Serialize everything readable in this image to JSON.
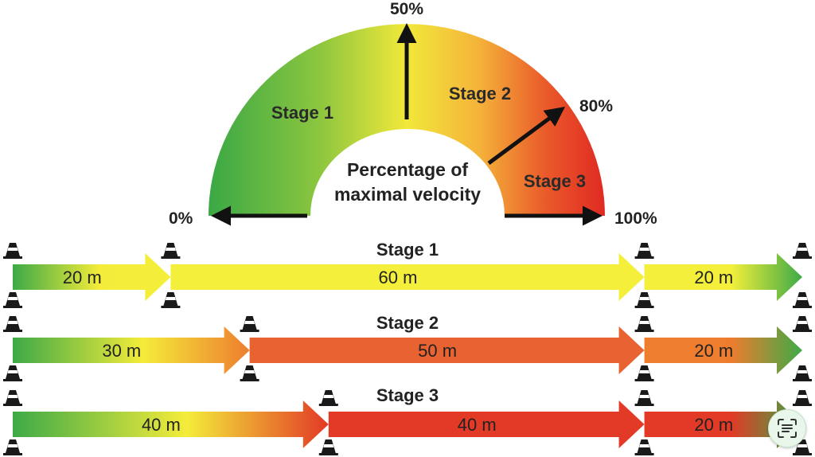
{
  "gauge": {
    "center_label_line1": "Percentage of",
    "center_label_line2": "maximal velocity",
    "ticks": [
      {
        "label": "0%",
        "value": 0
      },
      {
        "label": "50%",
        "value": 50
      },
      {
        "label": "80%",
        "value": 80
      },
      {
        "label": "100%",
        "value": 100
      }
    ],
    "zones": [
      {
        "label": "Stage 1",
        "from": 0,
        "to": 50
      },
      {
        "label": "Stage 2",
        "from": 50,
        "to": 80
      },
      {
        "label": "Stage 3",
        "from": 80,
        "to": 100
      }
    ],
    "colors": {
      "green": "#3daa47",
      "yellow": "#f2e83a",
      "orange": "#ee8a2e",
      "red": "#e23a26"
    }
  },
  "protocols": [
    {
      "title": "Stage 1",
      "segments": [
        {
          "label": "20 m",
          "meters": 20,
          "fill": "accelerate",
          "color_from": "#3daa47",
          "color_to": "#f4ef3a"
        },
        {
          "label": "60 m",
          "meters": 60,
          "fill": "hold",
          "color_from": "#f4ef3a",
          "color_to": "#f4ef3a"
        },
        {
          "label": "20 m",
          "meters": 20,
          "fill": "decelerate",
          "color_from": "#f4ef3a",
          "color_to": "#3daa47"
        }
      ]
    },
    {
      "title": "Stage 2",
      "segments": [
        {
          "label": "30 m",
          "meters": 30,
          "fill": "accelerate",
          "color_from": "#3daa47",
          "color_to": "#ee7d2e"
        },
        {
          "label": "50 m",
          "meters": 50,
          "fill": "hold",
          "color_from": "#e86232",
          "color_to": "#e86232"
        },
        {
          "label": "20 m",
          "meters": 20,
          "fill": "decelerate",
          "color_from": "#ee7d2e",
          "color_to": "#3daa47"
        }
      ]
    },
    {
      "title": "Stage 3",
      "segments": [
        {
          "label": "40 m",
          "meters": 40,
          "fill": "accelerate",
          "color_from": "#3daa47",
          "color_to": "#e23a26"
        },
        {
          "label": "40 m",
          "meters": 40,
          "fill": "hold",
          "color_from": "#e23a26",
          "color_to": "#e23a26"
        },
        {
          "label": "20 m",
          "meters": 20,
          "fill": "decelerate",
          "color_from": "#e23a26",
          "color_to": "#3daa47"
        }
      ]
    }
  ],
  "icons": {
    "cone": "traffic-cone-icon",
    "scan": "text-scan-icon"
  }
}
